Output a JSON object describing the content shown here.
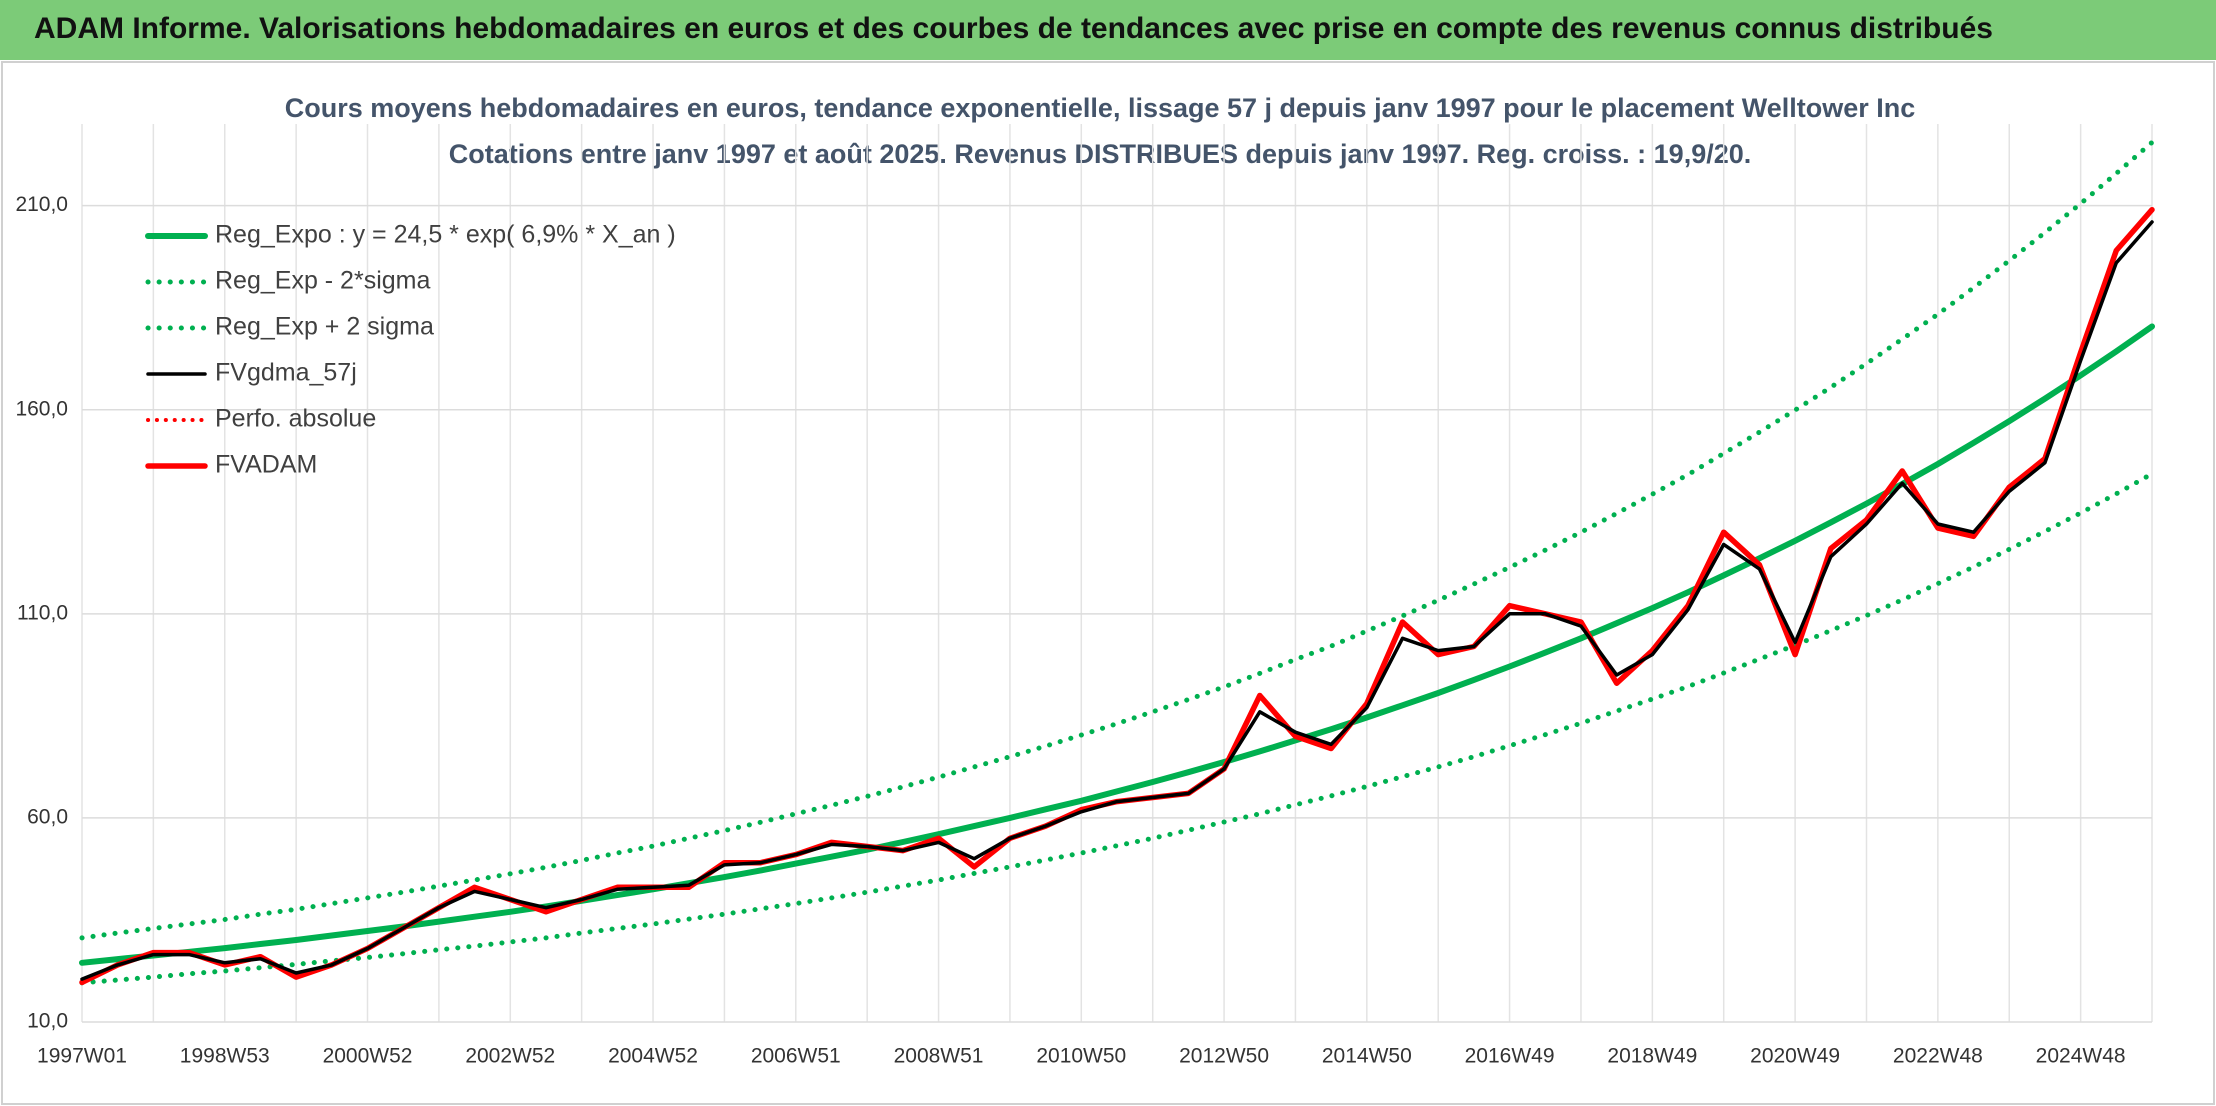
{
  "header": {
    "title": "ADAM Informe. Valorisations hebdomadaires en euros et des courbes de tendances avec prise en compte des revenus connus distribués"
  },
  "chart_data": {
    "type": "line",
    "title": "Cours moyens hebdomadaires en euros, tendance exponentielle, lissage 57 j depuis janv 1997 pour le placement Welltower Inc",
    "subtitle": "Cotations entre janv 1997 et août 2025. Revenus DISTRIBUES depuis janv 1997. Reg. croiss. : 19,9/20.",
    "categories": [
      "1997W01",
      null,
      null,
      null,
      "1998W53",
      null,
      null,
      null,
      "2000W52",
      null,
      null,
      null,
      "2002W52",
      null,
      null,
      null,
      "2004W52",
      null,
      null,
      null,
      "2006W51",
      null,
      null,
      null,
      "2008W51",
      null,
      null,
      null,
      "2010W50",
      null,
      null,
      null,
      "2012W50",
      null,
      null,
      null,
      "2014W50",
      null,
      null,
      null,
      "2016W49",
      null,
      null,
      null,
      "2018W49",
      null,
      null,
      null,
      "2020W49",
      null,
      null,
      null,
      "2022W48",
      null,
      null,
      null,
      "2024W48",
      null,
      null
    ],
    "ylim": [
      10,
      230
    ],
    "yticks": [
      {
        "value": 10,
        "label": "10,0"
      },
      {
        "value": 60,
        "label": "60,0"
      },
      {
        "value": 110,
        "label": "110,0"
      },
      {
        "value": 160,
        "label": "160,0"
      },
      {
        "value": 210,
        "label": "210,0"
      }
    ],
    "grid": true,
    "legend": "top-left",
    "series": [
      {
        "name": "Reg_Expo : y = 24,5 * exp( 6,9% *  X_an )",
        "color": "#00b050",
        "style": "solid",
        "values": [
          24.5,
          25.4,
          26.3,
          27.2,
          28.1,
          29.1,
          30.1,
          31.2,
          32.3,
          33.4,
          34.6,
          35.8,
          37.0,
          38.3,
          39.7,
          41.1,
          42.5,
          44.0,
          45.5,
          47.1,
          48.8,
          50.5,
          52.2,
          54.1,
          56.0,
          58.0,
          60.0,
          62.1,
          64.2,
          66.5,
          68.8,
          71.2,
          73.7,
          76.3,
          79.0,
          81.7,
          84.6,
          87.6,
          90.6,
          93.8,
          97.1,
          100.5,
          104.0,
          107.7,
          111.4,
          115.3,
          119.4,
          123.6,
          127.9,
          132.4,
          137.0,
          141.8,
          146.7,
          151.9,
          157.2,
          162.7,
          168.4,
          174.3,
          180.4
        ]
      },
      {
        "name": "Reg_Exp - 2*sigma",
        "color": "#00b050",
        "style": "dotted",
        "values": [
          19.6,
          20.3,
          21.0,
          21.8,
          22.5,
          23.3,
          24.1,
          25.0,
          25.8,
          26.7,
          27.7,
          28.6,
          29.6,
          30.6,
          31.8,
          32.9,
          34.0,
          35.2,
          36.4,
          37.7,
          39.0,
          40.4,
          41.8,
          43.3,
          44.8,
          46.4,
          48.0,
          49.7,
          51.4,
          53.2,
          55.0,
          57.0,
          59.0,
          61.0,
          63.2,
          65.4,
          67.7,
          70.1,
          72.5,
          75.0,
          77.7,
          80.4,
          83.2,
          86.2,
          89.1,
          92.2,
          95.5,
          98.9,
          102.3,
          105.9,
          109.6,
          113.4,
          117.4,
          121.5,
          125.8,
          130.2,
          134.7,
          139.4,
          144.3
        ]
      },
      {
        "name": "Reg_Exp + 2 sigma",
        "color": "#00b050",
        "style": "dotted",
        "values": [
          30.6,
          31.8,
          32.9,
          34.0,
          35.1,
          36.4,
          37.6,
          39.0,
          40.4,
          41.8,
          43.3,
          44.8,
          46.3,
          47.9,
          49.6,
          51.4,
          53.1,
          55.0,
          56.9,
          58.9,
          61.0,
          63.1,
          65.3,
          67.6,
          70.0,
          72.5,
          75.0,
          77.6,
          80.3,
          83.1,
          86.0,
          89.0,
          92.1,
          95.4,
          98.8,
          102.1,
          105.8,
          109.5,
          113.3,
          117.3,
          121.4,
          125.6,
          130.0,
          134.6,
          139.3,
          144.1,
          149.3,
          154.5,
          159.9,
          165.5,
          171.3,
          177.3,
          183.4,
          189.9,
          196.5,
          203.4,
          210.5,
          217.9,
          225.5
        ]
      },
      {
        "name": "FVgdma_57j",
        "color": "#000000",
        "style": "solid",
        "values": [
          20.5,
          24,
          26.5,
          26.5,
          24.5,
          25.5,
          22,
          24,
          28,
          33,
          38,
          42,
          40,
          38,
          40,
          42.5,
          43,
          43.5,
          48.5,
          49,
          51,
          53.5,
          53,
          52,
          54,
          50,
          55,
          58,
          61.5,
          64,
          65,
          66,
          72,
          86,
          81,
          78,
          87,
          104,
          101,
          102,
          110,
          110,
          107,
          95,
          100,
          111,
          127,
          121,
          103,
          124,
          132,
          142,
          132,
          130,
          140,
          147,
          172,
          196,
          206
        ]
      },
      {
        "name": "Perfo. absolue",
        "color": "#ff0000",
        "style": "dotted",
        "values": [
          19.7,
          24,
          27,
          27,
          24,
          26,
          21,
          24,
          28,
          33,
          38,
          43,
          40,
          37,
          40,
          43,
          43,
          43,
          49,
          49,
          51,
          54,
          53,
          52,
          55,
          48,
          55,
          58,
          62,
          64,
          65,
          66,
          72,
          90,
          80,
          77,
          88,
          108,
          100,
          102,
          112,
          110,
          108,
          93,
          101,
          112,
          130,
          122,
          100,
          126,
          133,
          145,
          131,
          129,
          141,
          148,
          174,
          199,
          209
        ]
      },
      {
        "name": "FVADAM",
        "color": "#ff0000",
        "style": "solid",
        "values": [
          19.7,
          24,
          27,
          27,
          24,
          26,
          21,
          24,
          28,
          33,
          38,
          43,
          40,
          37,
          40,
          43,
          43,
          43,
          49,
          49,
          51,
          54,
          53,
          52,
          55,
          48,
          55,
          58,
          62,
          64,
          65,
          66,
          72,
          90,
          80,
          77,
          88,
          108,
          100,
          102,
          112,
          110,
          108,
          93,
          101,
          112,
          130,
          122,
          100,
          126,
          133,
          145,
          131,
          129,
          141,
          148,
          174,
          199,
          209
        ]
      }
    ]
  }
}
